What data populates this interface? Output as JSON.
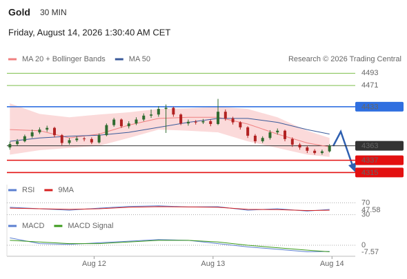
{
  "header": {
    "title": "Gold",
    "timeframe": "30 MIN",
    "datetime": "Friday, August 14, 2026 1:30:40 AM CET",
    "credit": "Research © 2026 Trading Central"
  },
  "chart_data": [
    {
      "type": "candlestick",
      "x": [
        7,
        8.5,
        10,
        11.5,
        13,
        14.5,
        16,
        17.5,
        19,
        20.5,
        22,
        23.5,
        25,
        26.5,
        28,
        29.5,
        31,
        32.5,
        34,
        35.5,
        37,
        38.5,
        40,
        41.5,
        43,
        44.5,
        46,
        47.5,
        49,
        50.5,
        52,
        53.5,
        55,
        56.5,
        58,
        59.5,
        61,
        62.5,
        64,
        65.5,
        67,
        68.5,
        70,
        71.5
      ],
      "open": [
        4360,
        4366,
        4371,
        4380,
        4387,
        4392,
        4395,
        4382,
        4368,
        4373,
        4376,
        4375,
        4369,
        4382,
        4400,
        4410,
        4398,
        4403,
        4410,
        4417,
        4419,
        4429,
        4431,
        4419,
        4403,
        4406,
        4405,
        4407,
        4402,
        4424,
        4412,
        4405,
        4396,
        4381,
        4371,
        4377,
        4387,
        4390,
        4375,
        4365,
        4360,
        4354,
        4350,
        4353
      ],
      "high": [
        4370,
        4375,
        4383,
        4392,
        4396,
        4399,
        4397,
        4384,
        4377,
        4380,
        4379,
        4378,
        4385,
        4403,
        4413,
        4412,
        4407,
        4414,
        4421,
        4428,
        4434,
        4437,
        4433,
        4421,
        4410,
        4409,
        4411,
        4410,
        4447,
        4428,
        4415,
        4407,
        4398,
        4384,
        4380,
        4391,
        4394,
        4392,
        4378,
        4368,
        4363,
        4357,
        4356,
        4366
      ],
      "low": [
        4356,
        4363,
        4369,
        4377,
        4384,
        4388,
        4378,
        4364,
        4365,
        4370,
        4371,
        4366,
        4367,
        4380,
        4397,
        4395,
        4394,
        4400,
        4407,
        4413,
        4415,
        4386,
        4415,
        4400,
        4399,
        4401,
        4402,
        4398,
        4400,
        4408,
        4401,
        4392,
        4377,
        4367,
        4368,
        4374,
        4383,
        4371,
        4361,
        4356,
        4350,
        4347,
        4347,
        4351
      ],
      "close": [
        4366,
        4371,
        4380,
        4387,
        4392,
        4395,
        4382,
        4368,
        4373,
        4376,
        4375,
        4369,
        4382,
        4400,
        4410,
        4398,
        4403,
        4410,
        4417,
        4419,
        4429,
        4431,
        4419,
        4403,
        4406,
        4405,
        4407,
        4402,
        4424,
        4412,
        4405,
        4396,
        4381,
        4371,
        4377,
        4387,
        4390,
        4375,
        4365,
        4360,
        4354,
        4350,
        4353,
        4363
      ],
      "up_color": "#2f6b2f",
      "down_color": "#b22222",
      "series": [
        {
          "name": "MA 20 + Bollinger Bands",
          "color": "#f08080",
          "band_color": "#fbdada",
          "x": [
            7,
            13,
            19,
            25,
            31,
            37,
            43,
            49,
            55,
            61,
            67,
            71.5
          ],
          "values": [
            4392,
            4390,
            4377,
            4384,
            4400,
            4412,
            4414,
            4414,
            4402,
            4384,
            4368,
            4361
          ],
          "upper": [
            4439,
            4420,
            4414,
            4419,
            4423,
            4429,
            4430,
            4433,
            4429,
            4414,
            4390,
            4377
          ],
          "lower": [
            4347,
            4355,
            4359,
            4363,
            4377,
            4392,
            4390,
            4387,
            4371,
            4359,
            4347,
            4343
          ]
        },
        {
          "name": "MA 50",
          "color": "#3a5a9a",
          "x": [
            7,
            13,
            19,
            25,
            31,
            37,
            43,
            49,
            55,
            61,
            67,
            71.5
          ],
          "values": [
            4371,
            4377,
            4380,
            4382,
            4387,
            4396,
            4405,
            4412,
            4412,
            4405,
            4392,
            4384
          ]
        }
      ],
      "levels": [
        {
          "value": 4493,
          "color": "#7cbf4a",
          "boxed": false
        },
        {
          "value": 4471,
          "color": "#7cbf4a",
          "boxed": false
        },
        {
          "value": 4433,
          "color": "#2f6fe0",
          "boxed": true
        },
        {
          "value": 4363,
          "color": "#333333",
          "boxed": true
        },
        {
          "value": 4337,
          "color": "#e31010",
          "boxed": true
        },
        {
          "value": 4315,
          "color": "#e31010",
          "boxed": true
        }
      ],
      "xlim": [
        6.4,
        76
      ],
      "ylim": [
        4297,
        4507
      ],
      "xticks": [
        {
          "value": 24,
          "label": "Aug 12"
        },
        {
          "value": 48,
          "label": "Aug 13"
        },
        {
          "value": 72,
          "label": "Aug 14"
        }
      ]
    },
    {
      "type": "line",
      "x": [
        7,
        13,
        19,
        25,
        31,
        37,
        43,
        49,
        55,
        61,
        67,
        71.5
      ],
      "series": [
        {
          "name": "RSI",
          "color": "#5b7fd0",
          "values": [
            55,
            50,
            45,
            52,
            58,
            60,
            56,
            57,
            45,
            50,
            42,
            47.58
          ]
        },
        {
          "name": "9MA",
          "color": "#d62020",
          "values": [
            52,
            50,
            48,
            50,
            55,
            57,
            56,
            55,
            48,
            47,
            44,
            45
          ]
        }
      ],
      "ylim": [
        15,
        85
      ],
      "yticks": [
        70,
        30
      ]
    },
    {
      "type": "line",
      "x": [
        7,
        13,
        19,
        25,
        31,
        37,
        43,
        49,
        55,
        61,
        67,
        71.5
      ],
      "series": [
        {
          "name": "MACD",
          "color": "#5b7fd0",
          "values": [
            9,
            2,
            1,
            3,
            5,
            7,
            6,
            2,
            -2,
            -5,
            -8,
            -7.57
          ]
        },
        {
          "name": "MACD Signal",
          "color": "#3a9a1a",
          "values": [
            6,
            4,
            2,
            2,
            4,
            6,
            6,
            4,
            0,
            -3,
            -6,
            -8
          ]
        }
      ],
      "ylim": [
        -13.5,
        13.5
      ],
      "yticks": [
        0
      ]
    }
  ]
}
